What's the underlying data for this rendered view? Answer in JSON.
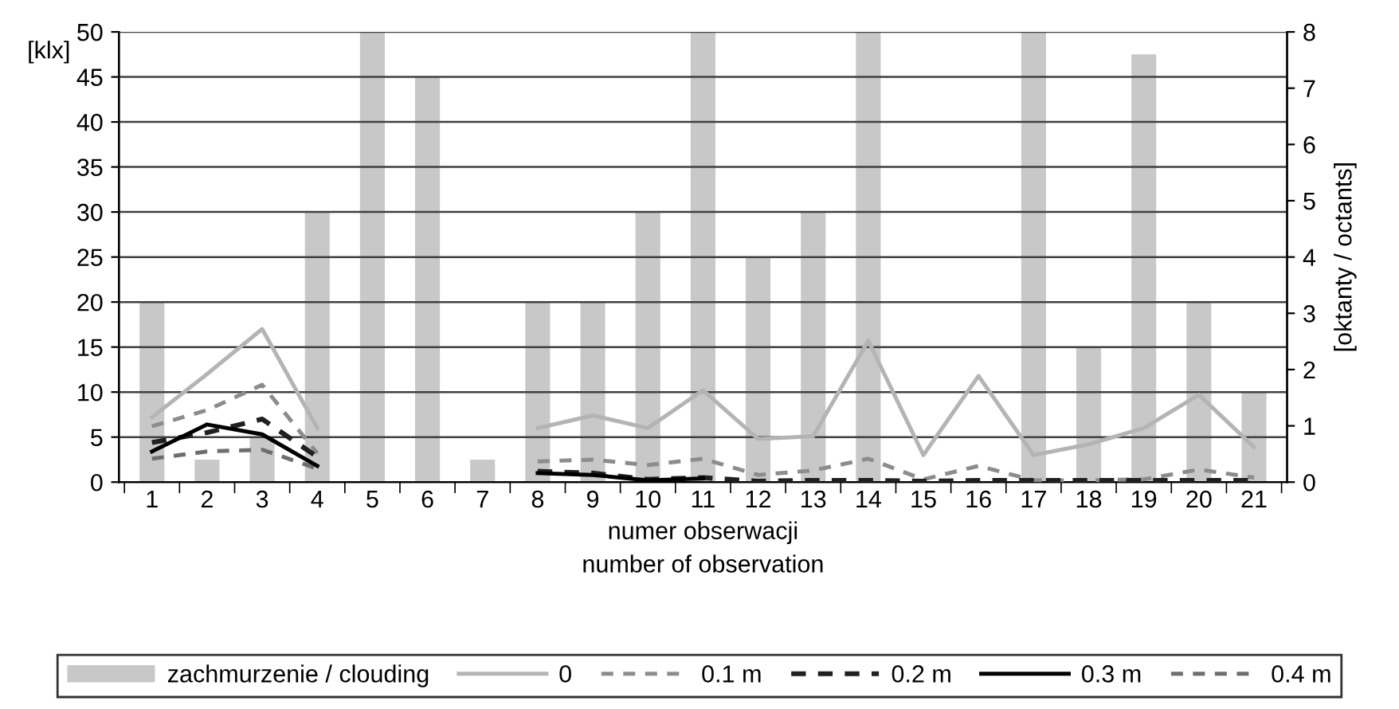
{
  "chart_data": {
    "type": "line",
    "categories": [
      "1",
      "2",
      "3",
      "4",
      "5",
      "6",
      "7",
      "8",
      "9",
      "10",
      "11",
      "12",
      "13",
      "14",
      "15",
      "16",
      "17",
      "18",
      "19",
      "20",
      "21"
    ],
    "xlabel": "numer obserwacji\nnumber of observation",
    "ylabel": "[klx]",
    "y2label": "[oktanty / octants]",
    "ylim": [
      0,
      50
    ],
    "yticks": [
      0,
      5,
      10,
      15,
      20,
      25,
      30,
      35,
      40,
      45,
      50
    ],
    "y2lim": [
      0,
      8
    ],
    "y2ticks": [
      0,
      1,
      2,
      3,
      4,
      5,
      6,
      7,
      8
    ],
    "grid": "y",
    "legend": "bottom",
    "marker": "none",
    "series": [
      {
        "name": "zachmurzenie / clouding",
        "type": "bar",
        "axis": "y2",
        "color": "#c8c8c8",
        "values": [
          3.2,
          0.4,
          0.8,
          4.8,
          8,
          7.2,
          0.4,
          3.2,
          3.2,
          4.8,
          8,
          4,
          4.8,
          8,
          0,
          0,
          8,
          2.4,
          7.6,
          3.2,
          1.6
        ]
      },
      {
        "name": "0",
        "color": "#b4b4b4",
        "line_style": "solid",
        "values": [
          7.2,
          12,
          17,
          6,
          null,
          null,
          null,
          6,
          7.4,
          6,
          10.2,
          4.8,
          5.1,
          15.7,
          3,
          11.8,
          3,
          4.2,
          6,
          9.7,
          3.9
        ]
      },
      {
        "name": "0.1 m",
        "color": "#8c8c8c",
        "line_style": "dashed",
        "values": [
          6.2,
          8,
          10.8,
          3.2,
          null,
          null,
          null,
          2.3,
          2.5,
          1.9,
          2.6,
          0.8,
          1.3,
          2.6,
          0.3,
          1.8,
          0.2,
          0.2,
          0.3,
          1.4,
          0.5
        ]
      },
      {
        "name": "0.2 m",
        "color": "#202020",
        "line_style": "dashed",
        "values": [
          4.4,
          5.5,
          7,
          2.8,
          null,
          null,
          null,
          1.2,
          1,
          0.3,
          0.5,
          0.1,
          0.2,
          0.2,
          0.1,
          0.2,
          0.2,
          0.2,
          0.2,
          0.2,
          0.2
        ]
      },
      {
        "name": "0.3 m",
        "color": "#000000",
        "line_style": "solid",
        "values": [
          3.4,
          6.4,
          5.3,
          1.8,
          null,
          null,
          null,
          1,
          0.8,
          0.2,
          0.4,
          null,
          null,
          null,
          null,
          null,
          null,
          null,
          null,
          null,
          null
        ]
      },
      {
        "name": "0.4 m",
        "color": "#6e6e6e",
        "line_style": "dashed",
        "values": [
          2.6,
          3.4,
          3.6,
          1.5,
          null,
          null,
          null,
          null,
          null,
          null,
          null,
          null,
          null,
          null,
          null,
          null,
          null,
          null,
          null,
          null,
          null
        ]
      }
    ]
  }
}
